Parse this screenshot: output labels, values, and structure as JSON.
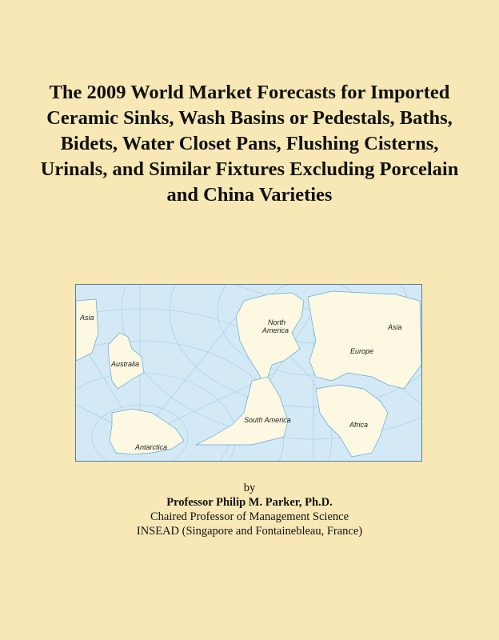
{
  "title": "The 2009 World Market Forecasts for Imported Ceramic Sinks, Wash Basins or Pedestals, Baths, Bidets, Water Closet Pans, Flushing Cisterns, Urinals, and Similar Fixtures Excluding Porcelain and China Varieties",
  "map": {
    "labels": {
      "asia_left": "Asia",
      "australia": "Australia",
      "north_america": "North America",
      "asia_right": "Asia",
      "europe": "Europe",
      "south_america": "South America",
      "africa": "Africa",
      "antarctica": "Antarctica"
    },
    "colors": {
      "ocean": "#d4e9f6",
      "land": "#fdf8e2",
      "grid": "#8cc3e0",
      "background": "#f7e8b6"
    }
  },
  "byline": {
    "by": "by",
    "author": "Professor Philip M. Parker, Ph.D.",
    "position": "Chaired Professor of Management Science",
    "affiliation": "INSEAD (Singapore and Fontainebleau, France)"
  }
}
